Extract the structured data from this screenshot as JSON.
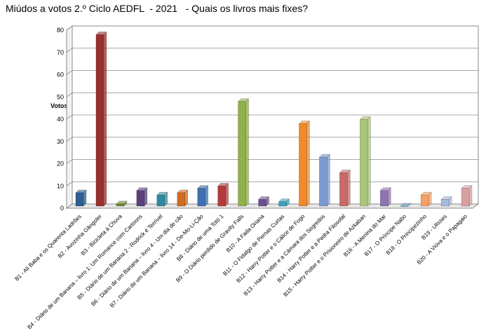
{
  "chart_data": {
    "type": "bar",
    "title": "Miúdos a votos 2.º Ciclo AEDFL  - 2021   - Quais os livros mais fixes?",
    "xlabel": "",
    "ylabel": "Votos",
    "ylim": [
      0,
      80
    ],
    "yticks": [
      0,
      10,
      20,
      30,
      40,
      50,
      60,
      70,
      80
    ],
    "grid": true,
    "legend": "none",
    "categories": [
      "B1 - Ali Baba e os Quarenta Ladrões",
      "B2 - Avozinha Gângster",
      "B3 - Bicicleta à Chuva",
      "B4 - Diário de um Banana – livro 1: Um Romance com Cartoons",
      "B5 - Diário de um Banana 2 - Rodrick é Terrível",
      "B6 - Diário de um Banana – livro 4 - Um dia de cão",
      "B7 - Diário de um Banana – livro 14 - De-Mo-Li-Ção",
      "B8 - Diário de uma Totó 1",
      "B9 - O Diário perdido de Gravity Falls",
      "B10 - A Fada Oriana",
      "B11 - O Fidalgo de Pernas Curtas",
      "B12 - Harry Potter e o Cálice de Fogo",
      "B13 - Harry Potter e a Câmara dos Segredos",
      "B14 - Harry Potter e a Pedra Filosofal",
      "B15 - Harry Potter e o Prisioneiro de Azkaban",
      "B16 - A Menina do Mar",
      "B17 - O Príncipe Nabo",
      "B18 - O Principezinho",
      "B19 - Ulisses",
      "B20 - A Viúva e o Papagaio"
    ],
    "values": [
      6,
      77,
      1,
      7,
      5,
      6,
      8,
      9,
      47,
      3,
      2,
      37,
      22,
      15,
      39,
      7,
      0,
      5,
      3,
      8
    ],
    "colors": [
      "#2e5f8f",
      "#9a2f2f",
      "#6e8a2c",
      "#5a3f7c",
      "#2e8aa0",
      "#d26a1f",
      "#3f6fae",
      "#b33a3a",
      "#8fb04a",
      "#6a4f94",
      "#38a0bc",
      "#f08a2a",
      "#7c9ad0",
      "#c96a6a",
      "#a8c47a",
      "#8f74b0",
      "#5fb0d0",
      "#f5a064",
      "#a8b8de",
      "#d8a0a0"
    ]
  }
}
